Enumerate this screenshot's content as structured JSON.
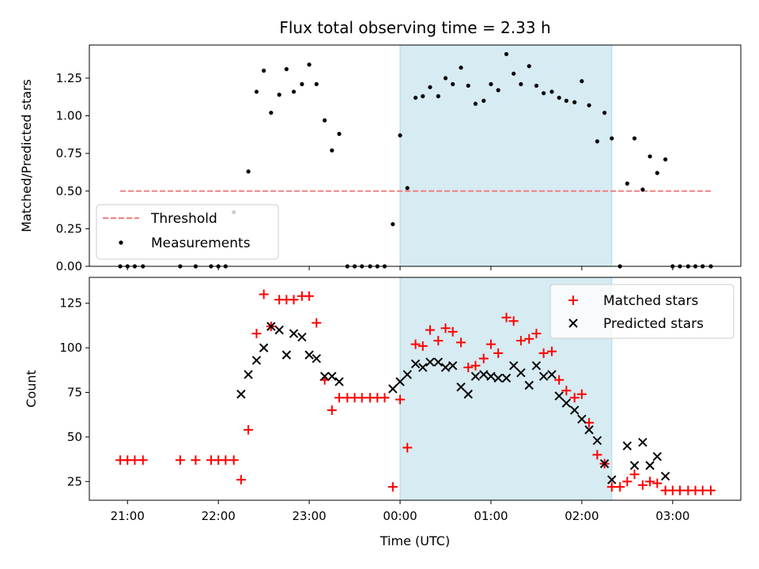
{
  "colors": {
    "shade": "#add8e6",
    "threshold": "#f08080",
    "matched": "#ff0000",
    "predicted": "#000000",
    "measurement": "#000000"
  },
  "chart_data": {
    "type": "scatter",
    "title": "Flux total observing time = 2.33 h",
    "xlabel": "Time (UTC)",
    "x_ticks": [
      "21:00",
      "22:00",
      "23:00",
      "00:00",
      "01:00",
      "02:00",
      "03:00"
    ],
    "x_axis_unit": "hours relative to 00:00 UTC",
    "xlim": [
      -3.42,
      3.75
    ],
    "shaded_span": [
      0.0,
      2.33
    ],
    "top": {
      "ylabel": "Matched/Predicted stars",
      "ylim": [
        0.0,
        1.47
      ],
      "y_ticks": [
        "0.00",
        "0.25",
        "0.50",
        "0.75",
        "1.00",
        "1.25"
      ],
      "threshold": {
        "name": "Threshold",
        "y": 0.5,
        "x_range": [
          -3.08,
          3.42
        ]
      },
      "measurements_name": "Measurements",
      "measurements": [
        [
          -3.08,
          0.0
        ],
        [
          -3.0,
          0.0
        ],
        [
          -2.92,
          0.0
        ],
        [
          -2.83,
          0.0
        ],
        [
          -2.42,
          0.0
        ],
        [
          -2.25,
          0.0
        ],
        [
          -2.08,
          0.0
        ],
        [
          -2.0,
          0.0
        ],
        [
          -1.92,
          0.0
        ],
        [
          -1.83,
          0.36
        ],
        [
          -1.67,
          0.63
        ],
        [
          -1.58,
          1.16
        ],
        [
          -1.5,
          1.3
        ],
        [
          -1.42,
          1.02
        ],
        [
          -1.33,
          1.14
        ],
        [
          -1.25,
          1.31
        ],
        [
          -1.17,
          1.16
        ],
        [
          -1.08,
          1.21
        ],
        [
          -1.0,
          1.34
        ],
        [
          -0.92,
          1.21
        ],
        [
          -0.83,
          0.97
        ],
        [
          -0.75,
          0.77
        ],
        [
          -0.67,
          0.88
        ],
        [
          -0.58,
          0.0
        ],
        [
          -0.5,
          0.0
        ],
        [
          -0.42,
          0.0
        ],
        [
          -0.33,
          0.0
        ],
        [
          -0.25,
          0.0
        ],
        [
          -0.17,
          0.0
        ],
        [
          -0.08,
          0.28
        ],
        [
          0.0,
          0.87
        ],
        [
          0.08,
          0.52
        ],
        [
          0.17,
          1.12
        ],
        [
          0.25,
          1.13
        ],
        [
          0.33,
          1.19
        ],
        [
          0.42,
          1.13
        ],
        [
          0.5,
          1.25
        ],
        [
          0.58,
          1.21
        ],
        [
          0.67,
          1.32
        ],
        [
          0.75,
          1.2
        ],
        [
          0.83,
          1.08
        ],
        [
          0.92,
          1.1
        ],
        [
          1.0,
          1.21
        ],
        [
          1.08,
          1.17
        ],
        [
          1.17,
          1.41
        ],
        [
          1.25,
          1.28
        ],
        [
          1.33,
          1.21
        ],
        [
          1.42,
          1.33
        ],
        [
          1.5,
          1.2
        ],
        [
          1.58,
          1.15
        ],
        [
          1.67,
          1.16
        ],
        [
          1.75,
          1.12
        ],
        [
          1.83,
          1.1
        ],
        [
          1.92,
          1.09
        ],
        [
          2.0,
          1.23
        ],
        [
          2.08,
          1.07
        ],
        [
          2.17,
          0.83
        ],
        [
          2.25,
          1.02
        ],
        [
          2.33,
          0.85
        ],
        [
          2.42,
          0.0
        ],
        [
          2.5,
          0.55
        ],
        [
          2.58,
          0.85
        ],
        [
          2.67,
          0.51
        ],
        [
          2.75,
          0.73
        ],
        [
          2.83,
          0.62
        ],
        [
          2.92,
          0.71
        ],
        [
          3.0,
          0.0
        ],
        [
          3.08,
          0.0
        ],
        [
          3.17,
          0.0
        ],
        [
          3.25,
          0.0
        ],
        [
          3.33,
          0.0
        ],
        [
          3.42,
          0.0
        ]
      ]
    },
    "bottom": {
      "ylabel": "Count",
      "ylim": [
        14.5,
        139.5
      ],
      "y_ticks": [
        "25",
        "50",
        "75",
        "100",
        "125"
      ],
      "series": [
        {
          "name": "Matched stars",
          "points": [
            [
              -3.08,
              37
            ],
            [
              -3.0,
              37
            ],
            [
              -2.92,
              37
            ],
            [
              -2.83,
              37
            ],
            [
              -2.42,
              37
            ],
            [
              -2.25,
              37
            ],
            [
              -2.08,
              37
            ],
            [
              -2.0,
              37
            ],
            [
              -1.92,
              37
            ],
            [
              -1.83,
              37
            ],
            [
              -1.75,
              26
            ],
            [
              -1.67,
              54
            ],
            [
              -1.58,
              108
            ],
            [
              -1.5,
              130
            ],
            [
              -1.42,
              112
            ],
            [
              -1.33,
              127
            ],
            [
              -1.25,
              127
            ],
            [
              -1.17,
              127
            ],
            [
              -1.08,
              129
            ],
            [
              -1.0,
              129
            ],
            [
              -0.92,
              114
            ],
            [
              -0.83,
              82
            ],
            [
              -0.75,
              65
            ],
            [
              -0.67,
              72
            ],
            [
              -0.58,
              72
            ],
            [
              -0.5,
              72
            ],
            [
              -0.42,
              72
            ],
            [
              -0.33,
              72
            ],
            [
              -0.25,
              72
            ],
            [
              -0.17,
              72
            ],
            [
              -0.08,
              22
            ],
            [
              0.0,
              71
            ],
            [
              0.08,
              44
            ],
            [
              0.17,
              102
            ],
            [
              0.25,
              101
            ],
            [
              0.33,
              110
            ],
            [
              0.42,
              104
            ],
            [
              0.5,
              111
            ],
            [
              0.58,
              109
            ],
            [
              0.67,
              103
            ],
            [
              0.75,
              89
            ],
            [
              0.83,
              90
            ],
            [
              0.92,
              94
            ],
            [
              1.0,
              102
            ],
            [
              1.08,
              97
            ],
            [
              1.17,
              117
            ],
            [
              1.25,
              115
            ],
            [
              1.33,
              104
            ],
            [
              1.42,
              105
            ],
            [
              1.5,
              108
            ],
            [
              1.58,
              97
            ],
            [
              1.67,
              98
            ],
            [
              1.75,
              82
            ],
            [
              1.83,
              76
            ],
            [
              1.92,
              72
            ],
            [
              2.0,
              74
            ],
            [
              2.08,
              58
            ],
            [
              2.17,
              40
            ],
            [
              2.25,
              35
            ],
            [
              2.33,
              22
            ],
            [
              2.42,
              22
            ],
            [
              2.5,
              25
            ],
            [
              2.58,
              29
            ],
            [
              2.67,
              23
            ],
            [
              2.75,
              25
            ],
            [
              2.83,
              24
            ],
            [
              2.92,
              20
            ],
            [
              3.0,
              20
            ],
            [
              3.08,
              20
            ],
            [
              3.17,
              20
            ],
            [
              3.25,
              20
            ],
            [
              3.33,
              20
            ],
            [
              3.42,
              20
            ]
          ]
        },
        {
          "name": "Predicted stars",
          "points": [
            [
              -1.75,
              74
            ],
            [
              -1.67,
              85
            ],
            [
              -1.58,
              93
            ],
            [
              -1.5,
              100
            ],
            [
              -1.42,
              112
            ],
            [
              -1.33,
              110
            ],
            [
              -1.25,
              96
            ],
            [
              -1.17,
              108
            ],
            [
              -1.08,
              106
            ],
            [
              -1.0,
              96
            ],
            [
              -0.92,
              94
            ],
            [
              -0.83,
              84
            ],
            [
              -0.75,
              84
            ],
            [
              -0.67,
              81
            ],
            [
              -0.08,
              77
            ],
            [
              0.0,
              81
            ],
            [
              0.08,
              85
            ],
            [
              0.17,
              91
            ],
            [
              0.25,
              89
            ],
            [
              0.33,
              92
            ],
            [
              0.42,
              92
            ],
            [
              0.5,
              89
            ],
            [
              0.58,
              90
            ],
            [
              0.67,
              78
            ],
            [
              0.75,
              74
            ],
            [
              0.83,
              84
            ],
            [
              0.92,
              85
            ],
            [
              1.0,
              84
            ],
            [
              1.08,
              83
            ],
            [
              1.17,
              83
            ],
            [
              1.25,
              90
            ],
            [
              1.33,
              86
            ],
            [
              1.42,
              79
            ],
            [
              1.5,
              90
            ],
            [
              1.58,
              84
            ],
            [
              1.67,
              85
            ],
            [
              1.75,
              73
            ],
            [
              1.83,
              69
            ],
            [
              1.92,
              65
            ],
            [
              2.0,
              60
            ],
            [
              2.08,
              54
            ],
            [
              2.17,
              48
            ],
            [
              2.25,
              35
            ],
            [
              2.33,
              26
            ],
            [
              2.5,
              45
            ],
            [
              2.58,
              34
            ],
            [
              2.67,
              47
            ],
            [
              2.75,
              34
            ],
            [
              2.83,
              39
            ],
            [
              2.92,
              28
            ]
          ]
        }
      ]
    }
  }
}
